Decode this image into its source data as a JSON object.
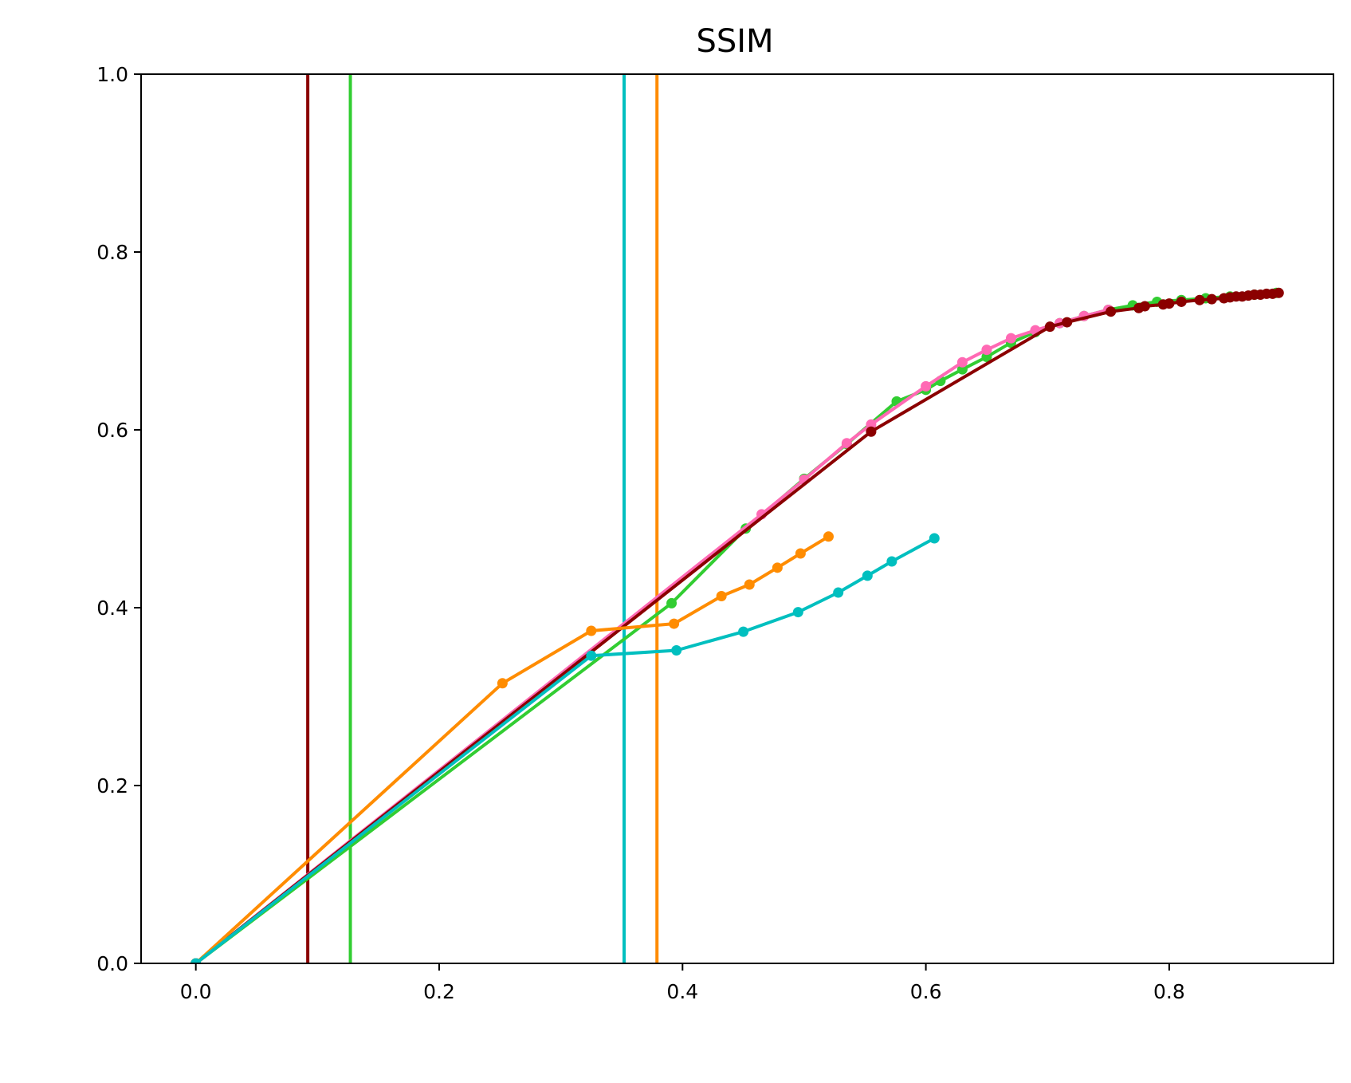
{
  "chart_data": {
    "type": "line",
    "title": "SSIM",
    "xlabel": "",
    "ylabel": "",
    "xlim": [
      -0.045,
      0.935
    ],
    "ylim": [
      0.0,
      1.0
    ],
    "grid": false,
    "legend": "none",
    "x_ticks": [
      "0.0",
      "0.2",
      "0.4",
      "0.6",
      "0.8"
    ],
    "x_tick_values": [
      0.0,
      0.2,
      0.4,
      0.6,
      0.8
    ],
    "y_ticks": [
      "0.0",
      "0.2",
      "0.4",
      "0.6",
      "0.8",
      "1.0"
    ],
    "y_tick_values": [
      0.0,
      0.2,
      0.4,
      0.6,
      0.8,
      1.0
    ],
    "vertical_lines": [
      {
        "x": 0.092,
        "color": "#8b0000"
      },
      {
        "x": 0.127,
        "color": "#32cd32"
      },
      {
        "x": 0.352,
        "color": "#00bfbf"
      },
      {
        "x": 0.379,
        "color": "#ff8c00"
      }
    ],
    "series": [
      {
        "color": "#32cd32",
        "markers": true,
        "points": [
          [
            0.0,
            0.0
          ],
          [
            0.391,
            0.405
          ],
          [
            0.452,
            0.489
          ],
          [
            0.5,
            0.545
          ],
          [
            0.535,
            0.584
          ],
          [
            0.576,
            0.632
          ],
          [
            0.6,
            0.645
          ],
          [
            0.612,
            0.655
          ],
          [
            0.63,
            0.668
          ],
          [
            0.65,
            0.682
          ],
          [
            0.67,
            0.698
          ],
          [
            0.69,
            0.71
          ],
          [
            0.71,
            0.72
          ],
          [
            0.73,
            0.728
          ],
          [
            0.75,
            0.735
          ],
          [
            0.77,
            0.74
          ],
          [
            0.79,
            0.744
          ],
          [
            0.81,
            0.746
          ],
          [
            0.83,
            0.748
          ],
          [
            0.85,
            0.75
          ],
          [
            0.87,
            0.752
          ],
          [
            0.888,
            0.754
          ]
        ]
      },
      {
        "color": "#ff69b4",
        "markers": true,
        "points": [
          [
            0.0,
            0.0
          ],
          [
            0.465,
            0.505
          ],
          [
            0.5,
            0.544
          ],
          [
            0.535,
            0.585
          ],
          [
            0.555,
            0.606
          ],
          [
            0.6,
            0.649
          ],
          [
            0.63,
            0.676
          ],
          [
            0.65,
            0.69
          ],
          [
            0.67,
            0.703
          ],
          [
            0.69,
            0.712
          ],
          [
            0.71,
            0.72
          ],
          [
            0.73,
            0.728
          ],
          [
            0.75,
            0.735
          ]
        ]
      },
      {
        "color": "#8b0000",
        "markers": true,
        "points": [
          [
            0.0,
            0.0
          ],
          [
            0.555,
            0.598
          ],
          [
            0.702,
            0.716
          ],
          [
            0.716,
            0.721
          ],
          [
            0.752,
            0.733
          ],
          [
            0.775,
            0.737
          ],
          [
            0.78,
            0.739
          ],
          [
            0.795,
            0.741
          ],
          [
            0.8,
            0.742
          ],
          [
            0.81,
            0.744
          ],
          [
            0.825,
            0.746
          ],
          [
            0.835,
            0.747
          ],
          [
            0.845,
            0.748
          ],
          [
            0.85,
            0.749
          ],
          [
            0.855,
            0.75
          ],
          [
            0.86,
            0.75
          ],
          [
            0.865,
            0.751
          ],
          [
            0.87,
            0.752
          ],
          [
            0.875,
            0.752
          ],
          [
            0.88,
            0.753
          ],
          [
            0.885,
            0.753
          ],
          [
            0.89,
            0.754
          ]
        ]
      },
      {
        "color": "#ff8c00",
        "markers": true,
        "points": [
          [
            0.0,
            0.0
          ],
          [
            0.252,
            0.315
          ],
          [
            0.325,
            0.374
          ],
          [
            0.393,
            0.382
          ],
          [
            0.432,
            0.413
          ],
          [
            0.455,
            0.426
          ],
          [
            0.478,
            0.445
          ],
          [
            0.497,
            0.461
          ],
          [
            0.52,
            0.48
          ]
        ]
      },
      {
        "color": "#00bfbf",
        "markers": true,
        "points": [
          [
            0.0,
            0.0
          ],
          [
            0.325,
            0.346
          ],
          [
            0.395,
            0.352
          ],
          [
            0.45,
            0.373
          ],
          [
            0.495,
            0.395
          ],
          [
            0.528,
            0.417
          ],
          [
            0.552,
            0.436
          ],
          [
            0.572,
            0.452
          ],
          [
            0.607,
            0.478
          ]
        ]
      }
    ]
  }
}
